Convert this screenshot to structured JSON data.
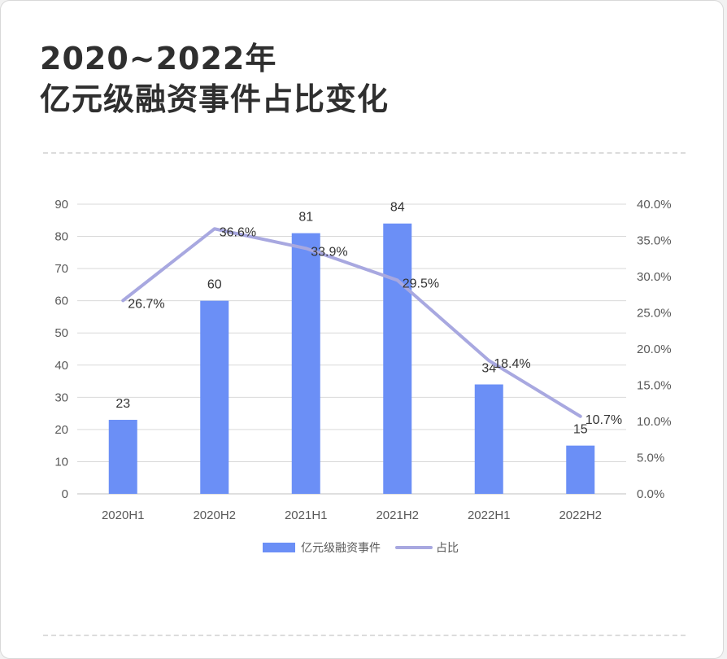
{
  "title_line1": "2020~2022年",
  "title_line2": "亿元级融资事件占比变化",
  "chart_data": {
    "type": "bar",
    "categories": [
      "2020H1",
      "2020H2",
      "2021H1",
      "2021H2",
      "2022H1",
      "2022H2"
    ],
    "series": [
      {
        "name": "亿元级融资事件",
        "type": "bar",
        "axis": "left",
        "values": [
          23,
          60,
          81,
          84,
          34,
          15
        ],
        "color": "#6b8ff6"
      },
      {
        "name": "占比",
        "type": "line",
        "axis": "right",
        "values": [
          26.7,
          36.6,
          33.9,
          29.5,
          18.4,
          10.7
        ],
        "color": "#a8a8e0"
      }
    ],
    "bar_labels": [
      "23",
      "60",
      "81",
      "84",
      "34",
      "15"
    ],
    "line_labels": [
      "26.7%",
      "36.6%",
      "33.9%",
      "29.5%",
      "18.4%",
      "10.7%"
    ],
    "ylim_left": [
      0,
      90
    ],
    "yticks_left": [
      "0",
      "10",
      "20",
      "30",
      "40",
      "50",
      "60",
      "70",
      "80",
      "90"
    ],
    "ylim_right": [
      0,
      40
    ],
    "yticks_right": [
      "0.0%",
      "5.0%",
      "10.0%",
      "15.0%",
      "20.0%",
      "25.0%",
      "30.0%",
      "35.0%",
      "40.0%"
    ],
    "grid": true,
    "legend": "bottom"
  }
}
